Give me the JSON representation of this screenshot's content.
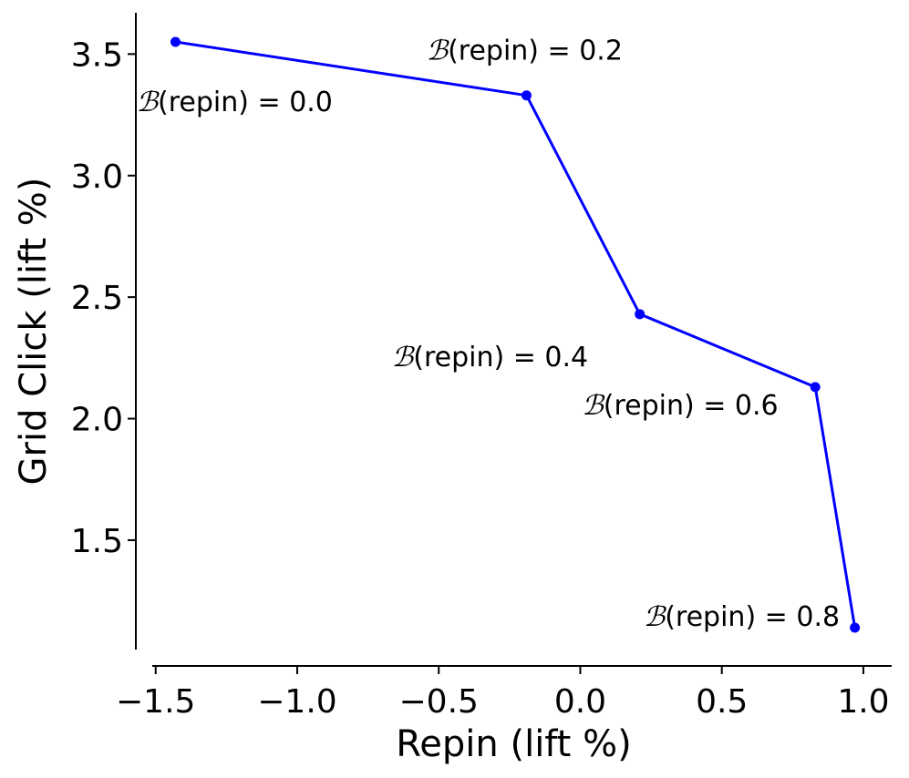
{
  "chart_data": {
    "type": "line",
    "xlabel": "Repin (lift %)",
    "ylabel": "Grid Click (lift %)",
    "xlim": [
      -1.57,
      1.1
    ],
    "ylim": [
      1.05,
      3.67
    ],
    "xticks": [
      -1.5,
      -1.0,
      -0.5,
      0.0,
      0.5,
      1.0
    ],
    "xtick_labels": [
      "−1.5",
      "−1.0",
      "−0.5",
      "0.0",
      "0.5",
      "1.0"
    ],
    "yticks": [
      1.5,
      2.0,
      2.5,
      3.0,
      3.5
    ],
    "ytick_labels": [
      "1.5",
      "2.0",
      "2.5",
      "3.0",
      "3.5"
    ],
    "grid": false,
    "color": "#0000ff",
    "series": [
      {
        "x": [
          -1.43,
          -0.19,
          0.21,
          0.83,
          0.97
        ],
        "y": [
          3.55,
          3.33,
          2.43,
          2.13,
          1.14
        ]
      }
    ],
    "annotations": [
      {
        "symbol": "ℬ",
        "text": "(repin) = 0.0",
        "x": -1.43,
        "y": 3.55
      },
      {
        "symbol": "ℬ",
        "text": "(repin) = 0.2",
        "x": -0.19,
        "y": 3.33
      },
      {
        "symbol": "ℬ",
        "text": "(repin) = 0.4",
        "x": 0.21,
        "y": 2.43
      },
      {
        "symbol": "ℬ",
        "text": "(repin) = 0.6",
        "x": 0.83,
        "y": 2.13
      },
      {
        "symbol": "ℬ",
        "text": "(repin) = 0.8",
        "x": 0.97,
        "y": 1.14
      }
    ]
  }
}
